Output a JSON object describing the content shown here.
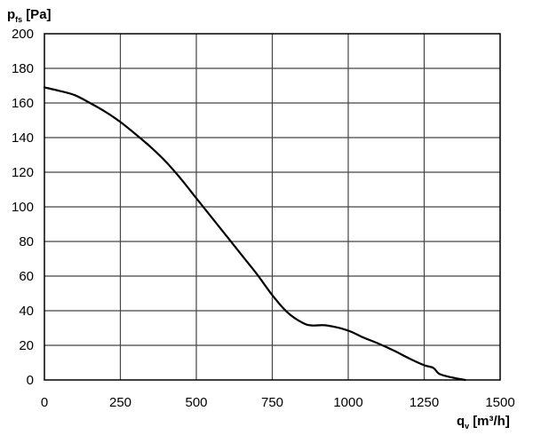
{
  "chart_data": {
    "type": "line",
    "y_axis": {
      "symbol": "p",
      "subscript": "fs",
      "unit": "[Pa]"
    },
    "x_axis": {
      "symbol": "q",
      "subscript": "v",
      "unit": "[m³/h]"
    },
    "xlim": [
      0,
      1500
    ],
    "ylim": [
      0,
      200
    ],
    "x_ticks": [
      "0",
      "250",
      "500",
      "750",
      "1000",
      "1250",
      "1500"
    ],
    "y_ticks": [
      "0",
      "20",
      "40",
      "60",
      "80",
      "100",
      "120",
      "140",
      "160",
      "180",
      "200"
    ],
    "grid": true,
    "series": [
      {
        "color": "#000000",
        "x": [
          0,
          50,
          100,
          150,
          200,
          250,
          300,
          350,
          400,
          450,
          500,
          550,
          600,
          650,
          700,
          750,
          800,
          850,
          880,
          930,
          1000,
          1050,
          1100,
          1150,
          1200,
          1250,
          1280,
          1300,
          1340,
          1385
        ],
        "y": [
          169,
          167,
          164.5,
          160,
          155,
          149,
          142,
          134.5,
          126,
          116,
          105,
          94,
          83,
          72,
          61,
          49,
          39,
          33,
          31.5,
          31.5,
          28.5,
          24.5,
          21,
          17,
          12.5,
          8.5,
          7,
          3.5,
          1.5,
          0
        ]
      }
    ]
  }
}
